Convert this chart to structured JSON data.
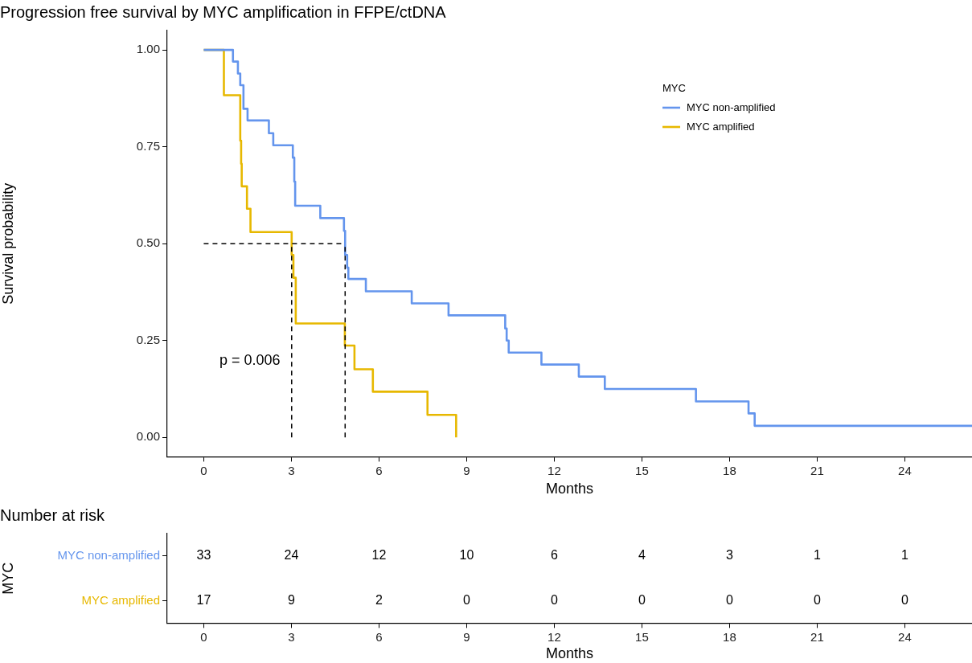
{
  "chart_data": [
    {
      "type": "step",
      "title": "Progression free survival by MYC amplification in FFPE/ctDNA",
      "xlabel": "Months",
      "ylabel": "Survival probability",
      "legend_title": "MYC",
      "legend": "top right",
      "line_style": "solid",
      "series": [
        {
          "name": "MYC non-amplified",
          "color": "#6495ed",
          "x": [
            0,
            1.0,
            1.17,
            1.25,
            1.36,
            1.5,
            2.23,
            2.38,
            3.05,
            3.1,
            3.13,
            3.99,
            4.8,
            4.84,
            4.91,
            4.95,
            5.55,
            7.12,
            8.38,
            10.32,
            10.37,
            10.44,
            11.56,
            12.84,
            13.73,
            16.85,
            18.65,
            18.86,
            26.3
          ],
          "values": [
            1.0,
            0.97,
            0.939,
            0.909,
            0.848,
            0.818,
            0.785,
            0.754,
            0.722,
            0.66,
            0.598,
            0.566,
            0.533,
            0.471,
            0.438,
            0.409,
            0.377,
            0.346,
            0.315,
            0.281,
            0.25,
            0.219,
            0.188,
            0.157,
            0.125,
            0.093,
            0.062,
            0.03,
            0.03
          ]
        },
        {
          "name": "MYC amplified",
          "color": "#e7b800",
          "x": [
            0,
            0.69,
            1.25,
            1.28,
            1.3,
            1.48,
            1.6,
            3.01,
            3.07,
            3.15,
            4.83,
            5.16,
            5.79,
            7.66,
            8.64
          ],
          "values": [
            1.0,
            0.883,
            0.766,
            0.706,
            0.648,
            0.59,
            0.53,
            0.471,
            0.412,
            0.294,
            0.237,
            0.176,
            0.118,
            0.058,
            0
          ]
        }
      ],
      "xlim": [
        -1.25,
        26.3
      ],
      "xticks": [
        0,
        3,
        6,
        9,
        12,
        15,
        18,
        21,
        24
      ],
      "ylim": [
        -0.05,
        1.05
      ],
      "yticks": [
        {
          "value": 0,
          "label": "0.00"
        },
        {
          "value": 0.25,
          "label": "0.25"
        },
        {
          "value": 0.5,
          "label": "0.50"
        },
        {
          "value": 0.75,
          "label": "0.75"
        },
        {
          "value": 1,
          "label": "1.00"
        }
      ],
      "ref_lines": [
        {
          "axis": "y",
          "value": 0.5,
          "line_style": "dashed",
          "color": "#000000"
        },
        {
          "axis": "x",
          "value": 3.01,
          "line_style": "dashed",
          "color": "#000000"
        },
        {
          "axis": "x",
          "value": 4.84,
          "line_style": "dashed",
          "color": "#000000"
        }
      ],
      "annotations": [
        "p = 0.006"
      ]
    },
    {
      "type": "heatmap",
      "title": "Number at risk",
      "xlabel": "Months",
      "ylabel": "MYC",
      "data_labels": true,
      "x": [
        0,
        3,
        6,
        9,
        12,
        15,
        18,
        21,
        24
      ],
      "xlim": [
        -1.25,
        26.3
      ],
      "xticks": [
        0,
        3,
        6,
        9,
        12,
        15,
        18,
        21,
        24
      ],
      "y_categories": [
        "MYC non-amplified",
        "MYC amplified"
      ],
      "colors": [
        "#6495ed",
        "#e7b800"
      ],
      "cells": [
        [
          33,
          24,
          12,
          10,
          6,
          4,
          3,
          1,
          1
        ],
        [
          17,
          9,
          2,
          0,
          0,
          0,
          0,
          0,
          0
        ]
      ]
    }
  ]
}
